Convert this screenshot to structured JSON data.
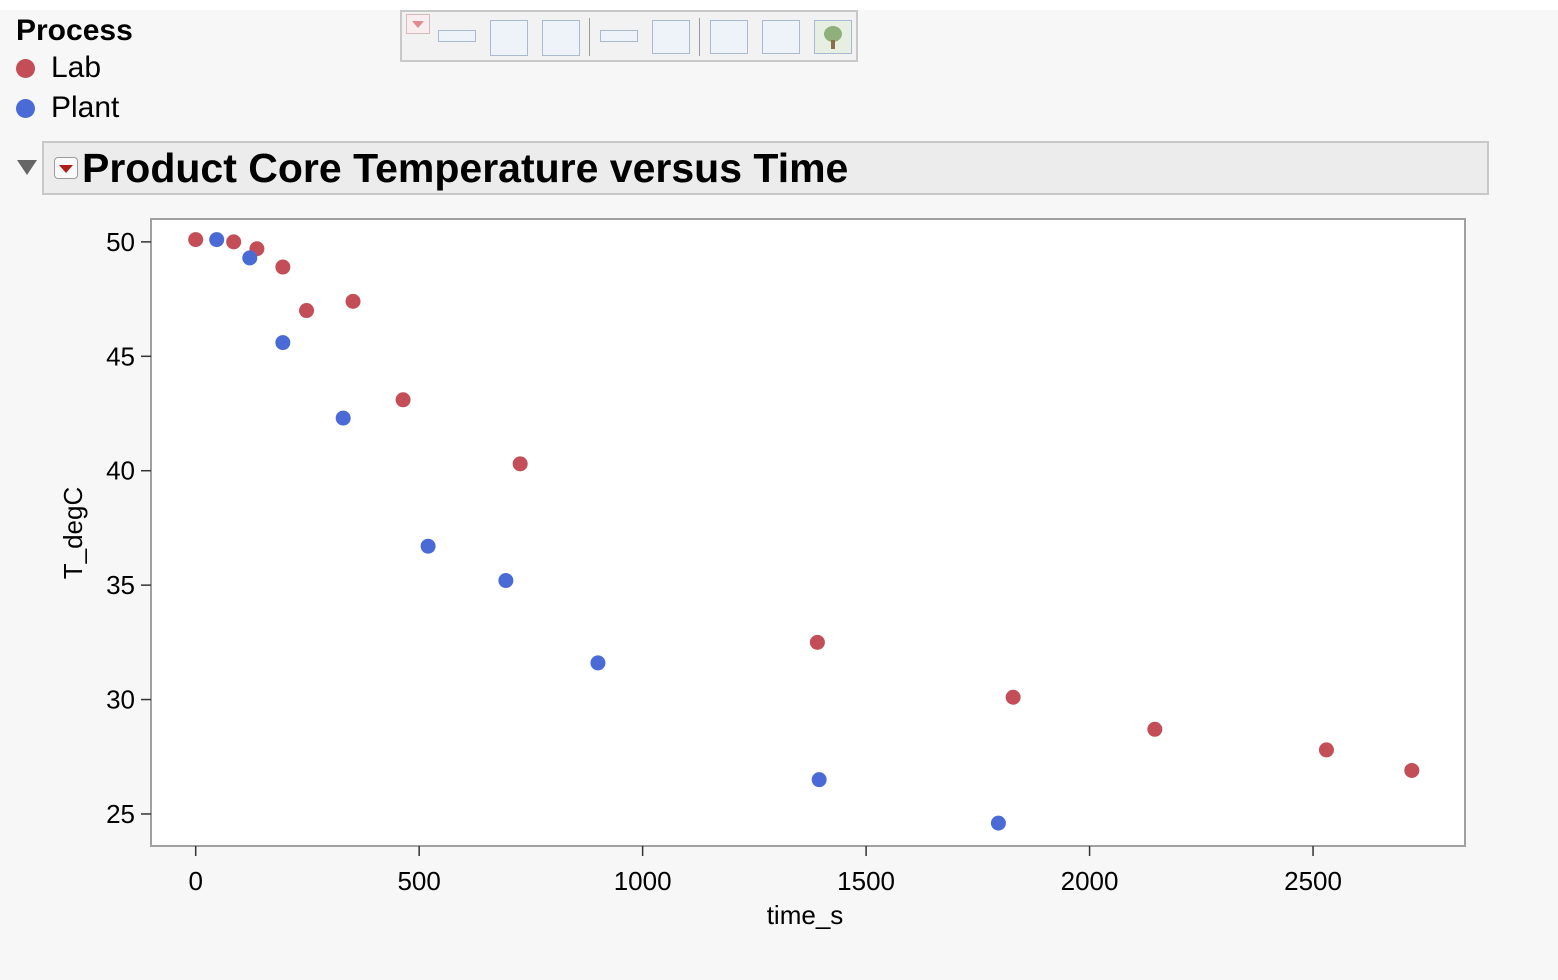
{
  "legend": {
    "title": "Process",
    "items": [
      {
        "label": "Lab",
        "color": "#c44e57"
      },
      {
        "label": "Plant",
        "color": "#4a6bd6"
      }
    ]
  },
  "toolbar": {
    "icons": [
      "dropdown-icon",
      "single-line-box-icon",
      "list-box-icon",
      "tab-box-icon",
      "text-edit-box-icon",
      "scroll-box-icon",
      "outline-box-icon",
      "report-box-icon",
      "tree-box-icon"
    ]
  },
  "report": {
    "title": "Product Core Temperature versus Time"
  },
  "chart_data": {
    "type": "scatter",
    "xlabel": "time_s",
    "ylabel": "T_degC",
    "xlim": [
      -100,
      2840
    ],
    "ylim": [
      23.6,
      51.0
    ],
    "xticks": [
      0,
      500,
      1000,
      1500,
      2000,
      2500
    ],
    "yticks": [
      25,
      30,
      35,
      40,
      45,
      50
    ],
    "grid": false,
    "legend": "top-left",
    "series": [
      {
        "name": "Lab",
        "color": "#c44e57",
        "points": [
          [
            0,
            50.1
          ],
          [
            85,
            50.0
          ],
          [
            137,
            49.7
          ],
          [
            195,
            48.9
          ],
          [
            248,
            47.0
          ],
          [
            352,
            47.4
          ],
          [
            464,
            43.1
          ],
          [
            726,
            40.3
          ],
          [
            1391,
            32.5
          ],
          [
            1829,
            30.1
          ],
          [
            2146,
            28.7
          ],
          [
            2530,
            27.8
          ],
          [
            2721,
            26.9
          ]
        ]
      },
      {
        "name": "Plant",
        "color": "#4a6bd6",
        "points": [
          [
            47,
            50.1
          ],
          [
            121,
            49.3
          ],
          [
            195,
            45.6
          ],
          [
            330,
            42.3
          ],
          [
            520,
            36.7
          ],
          [
            694,
            35.2
          ],
          [
            900,
            31.6
          ],
          [
            1395,
            26.5
          ],
          [
            1796,
            24.6
          ]
        ]
      }
    ]
  }
}
